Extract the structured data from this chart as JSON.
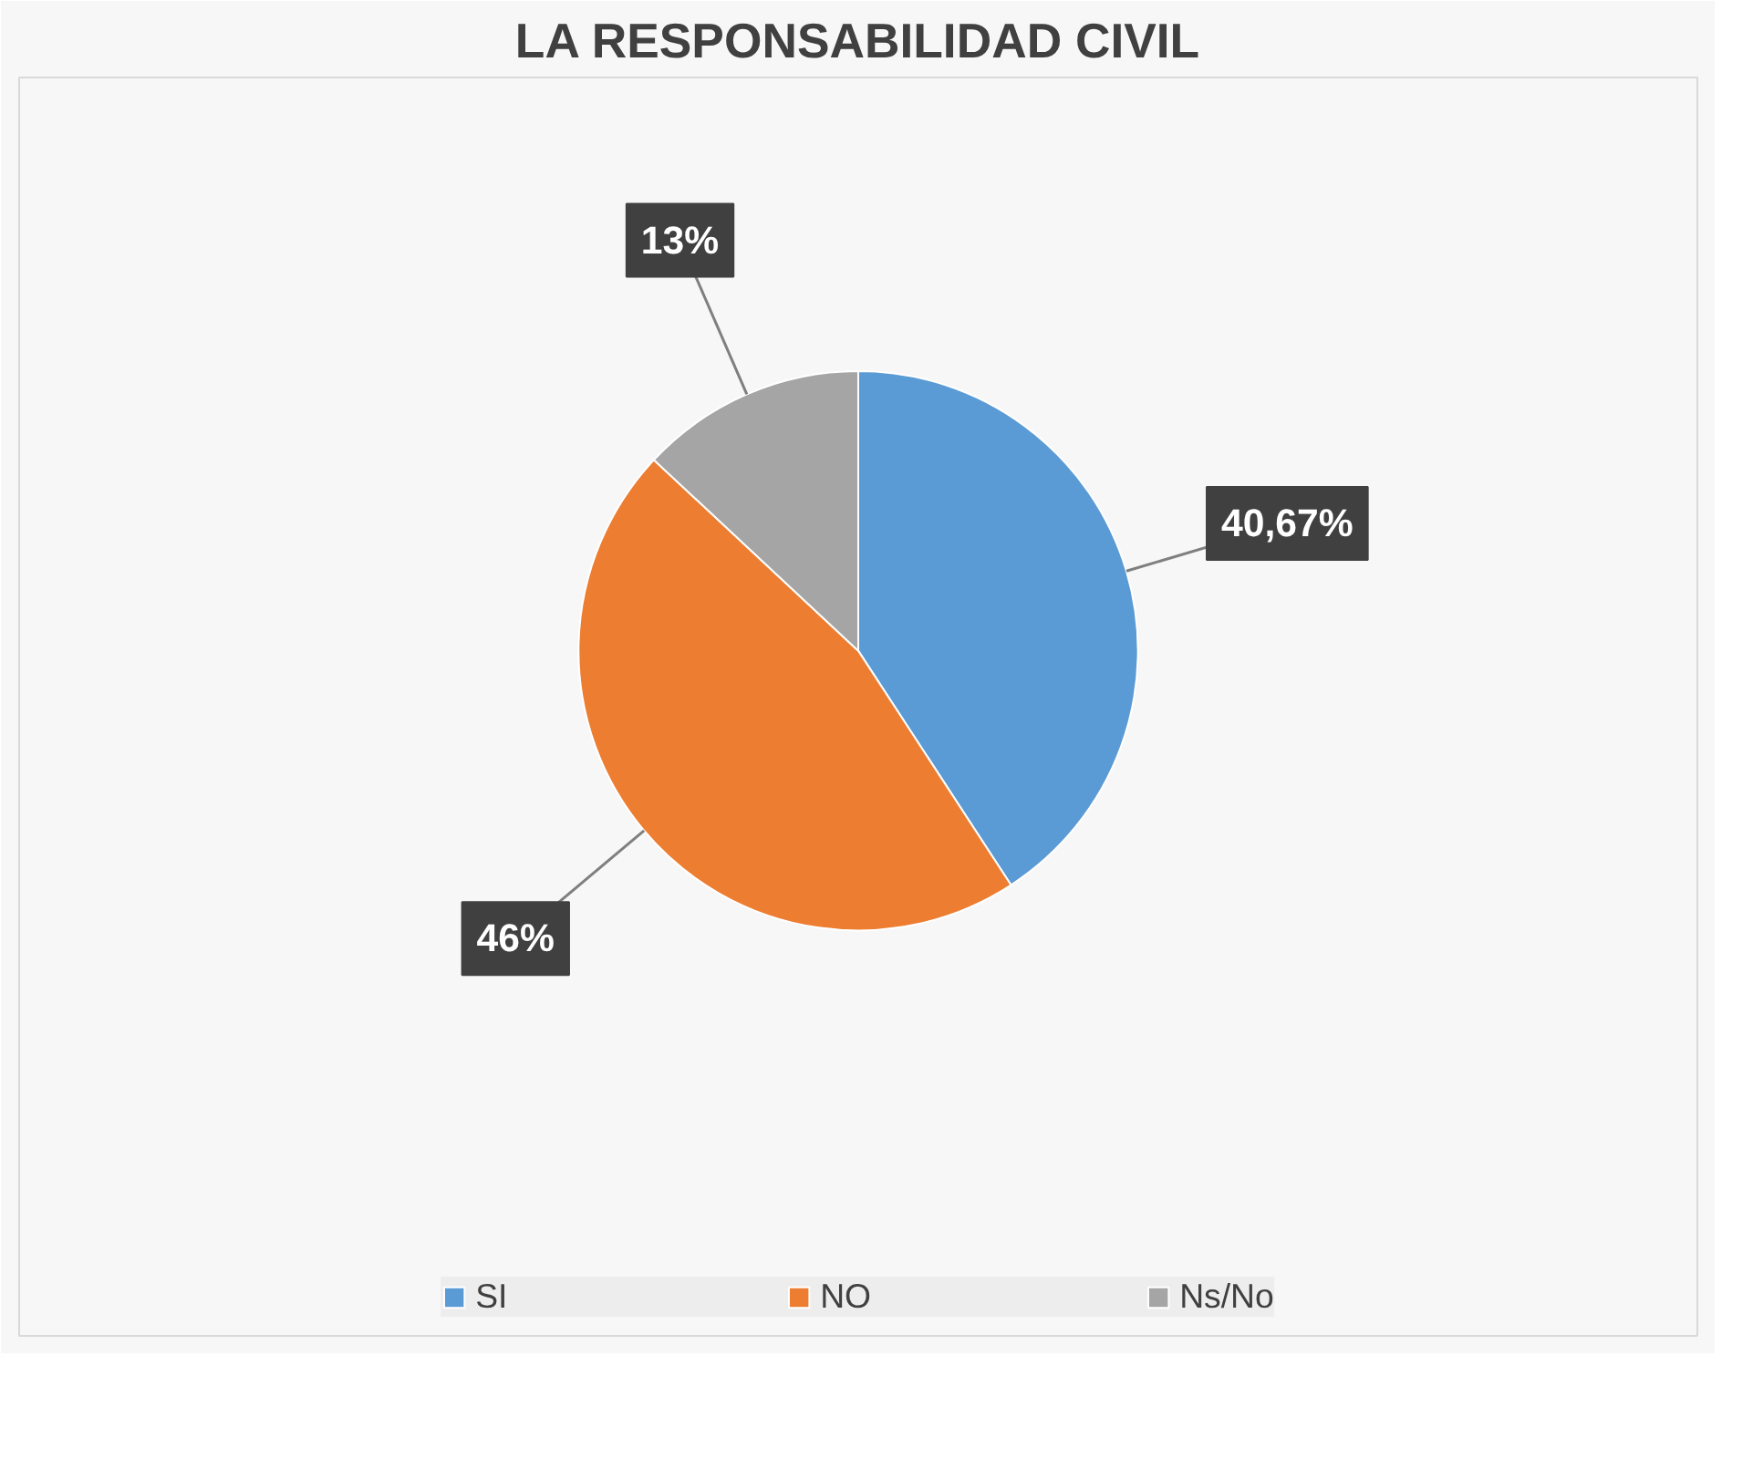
{
  "chart_data": {
    "type": "pie",
    "title": "LA RESPONSABILIDAD CIVIL",
    "categories": [
      "SI",
      "NO",
      "Ns/No"
    ],
    "values": [
      40.67,
      46,
      13
    ],
    "value_labels": [
      "40,67%",
      "46%",
      "13%"
    ],
    "colors": [
      "#5b9bd5",
      "#ed7d31",
      "#a5a5a5"
    ],
    "legend": "bottom"
  }
}
